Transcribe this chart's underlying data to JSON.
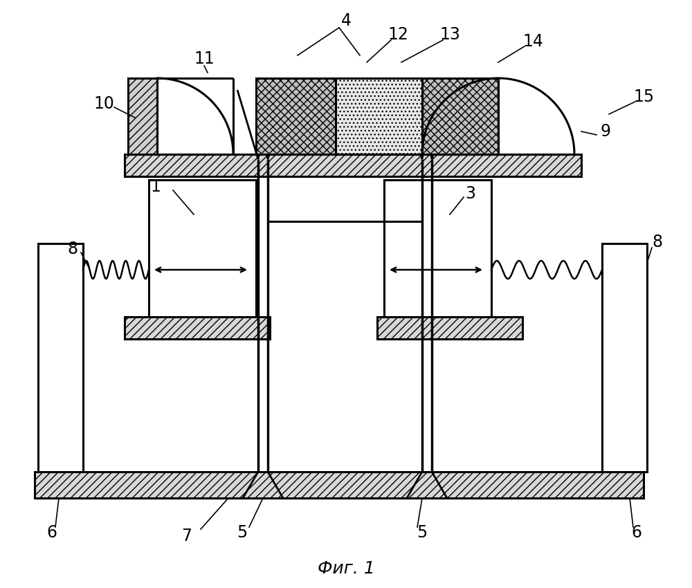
{
  "title": "Фиг. 1",
  "title_fontsize": 18,
  "bg_color": "#ffffff",
  "line_color": "#000000"
}
